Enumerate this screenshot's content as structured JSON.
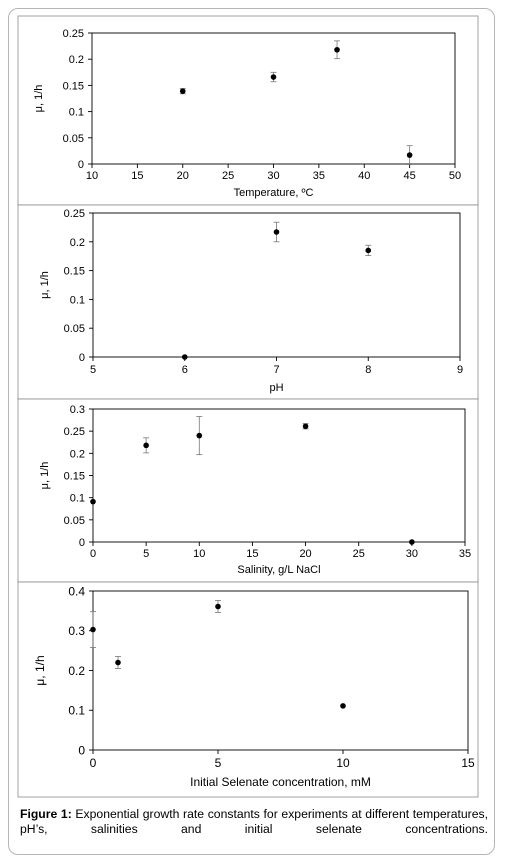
{
  "figure": {
    "caption_label": "Figure 1:",
    "caption_text": " Exponential growth rate constants for experiments at different temperatures, pH’s, salinities and initial selenate concentrations."
  },
  "chart_data": [
    {
      "type": "scatter",
      "xlabel": "Temperature, ºC",
      "ylabel": "μ, 1/h",
      "xlim": [
        10,
        50
      ],
      "ylim": [
        0,
        0.25
      ],
      "xticks": [
        10,
        15,
        20,
        25,
        30,
        35,
        40,
        45,
        50
      ],
      "yticks": [
        0,
        0.05,
        0.1,
        0.15,
        0.2,
        0.25
      ],
      "xtick_labels": [
        "10",
        "15",
        "20",
        "25",
        "30",
        "35",
        "40",
        "45",
        "50"
      ],
      "ytick_labels": [
        "0",
        "0.05",
        "0.1",
        "0.15",
        "0.2",
        "0.25"
      ],
      "grid": false,
      "points": [
        {
          "x": 20,
          "y": 0.139,
          "err": 0.005
        },
        {
          "x": 30,
          "y": 0.166,
          "err": 0.009
        },
        {
          "x": 37,
          "y": 0.218,
          "err": 0.017
        },
        {
          "x": 45,
          "y": 0.017,
          "err": 0.018
        }
      ]
    },
    {
      "type": "scatter",
      "xlabel": "pH",
      "ylabel": "μ, 1/h",
      "xlim": [
        5,
        9
      ],
      "ylim": [
        0,
        0.25
      ],
      "xticks": [
        5,
        6,
        7,
        8,
        9
      ],
      "yticks": [
        0,
        0.05,
        0.1,
        0.15,
        0.2,
        0.25
      ],
      "xtick_labels": [
        "5",
        "6",
        "7",
        "8",
        "9"
      ],
      "ytick_labels": [
        "0",
        "0.05",
        "0.1",
        "0.15",
        "0.2",
        "0.25"
      ],
      "grid": false,
      "points": [
        {
          "x": 6,
          "y": 0.0,
          "err": 0
        },
        {
          "x": 7,
          "y": 0.217,
          "err": 0.017
        },
        {
          "x": 8,
          "y": 0.185,
          "err": 0.009
        }
      ]
    },
    {
      "type": "scatter",
      "xlabel": "Salinity, g/L NaCl",
      "ylabel": "μ, 1/h",
      "xlim": [
        0,
        35
      ],
      "ylim": [
        0,
        0.3
      ],
      "xticks": [
        0,
        5,
        10,
        15,
        20,
        25,
        30,
        35
      ],
      "yticks": [
        0,
        0.05,
        0.1,
        0.15,
        0.2,
        0.25,
        0.3
      ],
      "xtick_labels": [
        "0",
        "5",
        "10",
        "15",
        "20",
        "25",
        "30",
        "35"
      ],
      "ytick_labels": [
        "0",
        "0.05",
        "0.1",
        "0.15",
        "0.2",
        "0.25",
        "0.3"
      ],
      "grid": false,
      "points": [
        {
          "x": 0,
          "y": 0.091,
          "err": 0
        },
        {
          "x": 5,
          "y": 0.218,
          "err": 0.017
        },
        {
          "x": 10,
          "y": 0.24,
          "err": 0.043
        },
        {
          "x": 20,
          "y": 0.261,
          "err": 0.006
        },
        {
          "x": 30,
          "y": 0.0,
          "err": 0
        }
      ]
    },
    {
      "type": "scatter",
      "xlabel": "Initial Selenate concentration, mM",
      "ylabel": "μ, 1/h",
      "xlim": [
        0,
        15
      ],
      "ylim": [
        0,
        0.4
      ],
      "xticks": [
        0,
        5,
        10,
        15
      ],
      "yticks": [
        0,
        0.1,
        0.2,
        0.3,
        0.4
      ],
      "xtick_labels": [
        "0",
        "5",
        "10",
        "15"
      ],
      "ytick_labels": [
        "0",
        "0.1",
        "0.2",
        "0.3",
        "0.4"
      ],
      "grid": false,
      "points": [
        {
          "x": 0,
          "y": 0.303,
          "err": 0.045
        },
        {
          "x": 1,
          "y": 0.22,
          "err": 0.015
        },
        {
          "x": 5,
          "y": 0.361,
          "err": 0.015
        },
        {
          "x": 10,
          "y": 0.111,
          "err": 0
        }
      ]
    }
  ]
}
